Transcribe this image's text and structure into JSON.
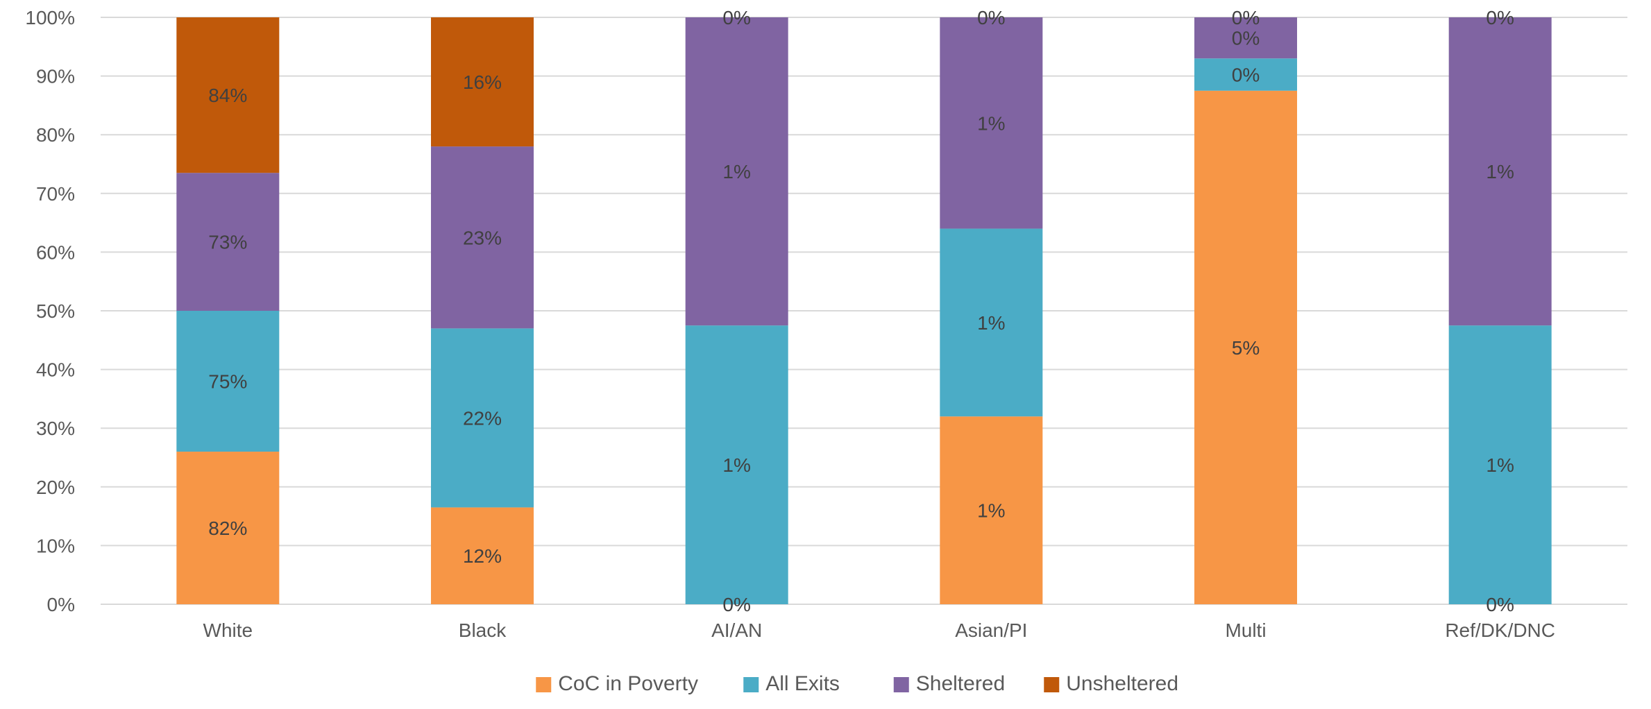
{
  "chart_data": {
    "type": "bar",
    "stacked": true,
    "percent_stacked": true,
    "categories": [
      "White",
      "Black",
      "AI/AN",
      "Asian/PI",
      "Multi",
      "Ref/DK/DNC"
    ],
    "y_ticks": [
      "0%",
      "10%",
      "20%",
      "30%",
      "40%",
      "50%",
      "60%",
      "70%",
      "80%",
      "90%",
      "100%"
    ],
    "ylim": [
      0,
      100
    ],
    "grid": true,
    "legend_position": "bottom",
    "series": [
      {
        "name": "CoC in Poverty",
        "color": "#F79646",
        "share": [
          26,
          16.5,
          0,
          32,
          87.5,
          0
        ],
        "labels": [
          "82%",
          "12%",
          "0%",
          "1%",
          "5%",
          "0%"
        ]
      },
      {
        "name": "All Exits",
        "color": "#4BACC6",
        "share": [
          24,
          30.5,
          47.5,
          32,
          5.5,
          47.5
        ],
        "labels": [
          "75%",
          "22%",
          "1%",
          "1%",
          "0%",
          "1%"
        ]
      },
      {
        "name": "Sheltered",
        "color": "#8064A2",
        "share": [
          23.5,
          31,
          52.5,
          36,
          7,
          52.5
        ],
        "labels": [
          "73%",
          "23%",
          "1%",
          "1%",
          "0%",
          "1%"
        ]
      },
      {
        "name": "Unsheltered",
        "color": "#C0590A",
        "share": [
          26.5,
          22,
          0,
          0,
          0,
          0
        ],
        "labels": [
          "84%",
          "16%",
          "0%",
          "0%",
          "0%",
          "0%"
        ]
      }
    ]
  }
}
